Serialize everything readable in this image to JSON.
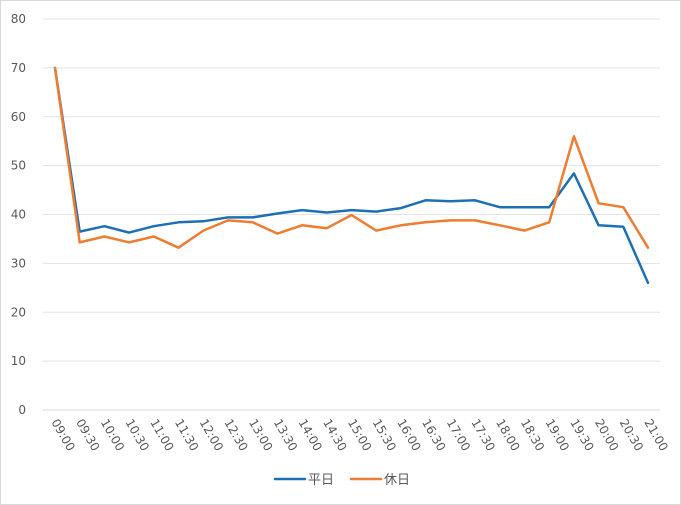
{
  "chart_data": {
    "type": "line",
    "title": "",
    "xlabel": "",
    "ylabel": "",
    "ylim": [
      0,
      80
    ],
    "y_ticks": [
      0,
      10,
      20,
      30,
      40,
      50,
      60,
      70,
      80
    ],
    "grid": true,
    "legend_position": "bottom",
    "categories": [
      "09:00",
      "09:30",
      "10:00",
      "10:30",
      "11:00",
      "11:30",
      "12:00",
      "12:30",
      "13:00",
      "13:30",
      "14:00",
      "14:30",
      "15:00",
      "15:30",
      "16:00",
      "16:30",
      "17:00",
      "17:30",
      "18:00",
      "18:30",
      "19:00",
      "19:30",
      "20:00",
      "20:30",
      "21:00"
    ],
    "series": [
      {
        "name": "平日",
        "color": "#1f6fb4",
        "values": [
          70.0,
          36.5,
          37.6,
          36.3,
          37.6,
          38.4,
          38.6,
          39.4,
          39.4,
          40.2,
          40.9,
          40.4,
          40.9,
          40.6,
          41.3,
          42.9,
          42.7,
          42.9,
          41.5,
          41.5,
          41.5,
          48.4,
          37.8,
          37.5,
          26.0
        ]
      },
      {
        "name": "休日",
        "color": "#ed7d31",
        "values": [
          70.0,
          34.3,
          35.5,
          34.3,
          35.5,
          33.2,
          36.7,
          38.8,
          38.4,
          36.1,
          37.8,
          37.2,
          39.9,
          36.7,
          37.8,
          38.4,
          38.8,
          38.8,
          37.8,
          36.7,
          38.4,
          56.0,
          42.3,
          41.5,
          33.2
        ]
      }
    ]
  }
}
